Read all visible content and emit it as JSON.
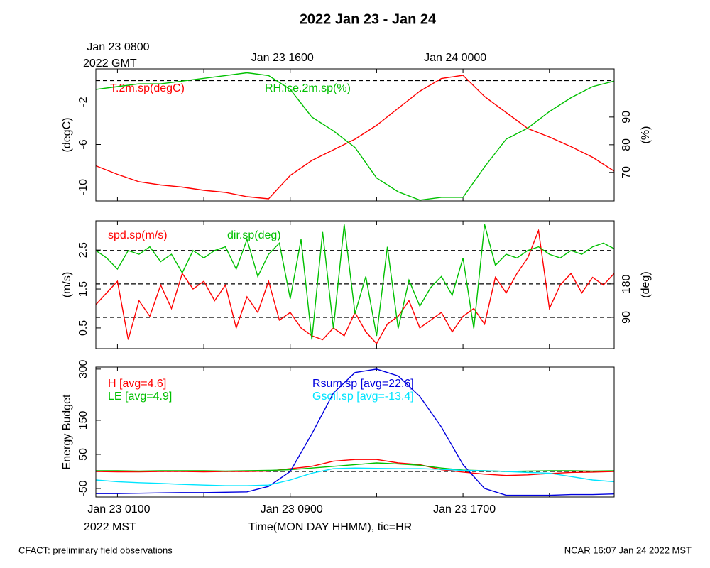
{
  "title": "2022 Jan 23 - Jan 24",
  "x_label": "Time(MON DAY HHMM), tic=HR",
  "bottom_zone_label": "2022 MST",
  "top_zone_label": "2022 GMT",
  "footer_left": "CFACT: preliminary field observations",
  "footer_right": "NCAR 16:07 Jan 24 2022 MST",
  "xlim": [
    -1,
    23
  ],
  "xticks": [
    {
      "value": 0,
      "label": "Jan 23 0100"
    },
    {
      "value": 8,
      "label": "Jan 23 0900"
    },
    {
      "value": 16,
      "label": "Jan 23 1700"
    }
  ],
  "top_xticks": [
    {
      "value": 0,
      "label": "Jan 23 0800"
    },
    {
      "value": 8,
      "label": "Jan 23 1600"
    },
    {
      "value": 16,
      "label": "Jan 24 0000"
    }
  ],
  "minor_xticks": [
    4,
    12,
    20
  ],
  "chart_data": [
    {
      "type": "line",
      "ylabel": "(degC)",
      "y2label": "(%)",
      "x": [
        -1,
        0,
        1,
        2,
        3,
        4,
        5,
        6,
        7,
        8,
        9,
        10,
        11,
        12,
        13,
        14,
        15,
        16,
        17,
        18,
        19,
        20,
        21,
        22,
        23
      ],
      "ylim": [
        -11.3,
        1.1
      ],
      "yticks": [
        -10,
        -6,
        -2
      ],
      "y2lim": [
        59.7,
        107.4
      ],
      "y2ticks": [
        70,
        80,
        90
      ],
      "hlines": [
        0
      ],
      "series": [
        {
          "name": "T.2m.sp(degC)",
          "color": "#ff0000",
          "values": [
            -8,
            -8.8,
            -9.5,
            -9.8,
            -10,
            -10.3,
            -10.5,
            -10.9,
            -11.1,
            -8.9,
            -7.5,
            -6.5,
            -5.5,
            -4.2,
            -2.6,
            -1.0,
            0.2,
            0.5,
            -1.5,
            -3.0,
            -4.5,
            -5.3,
            -6.2,
            -7.2,
            -8.5
          ]
        },
        {
          "name": "RH.ice.2m.sp(%)",
          "color": "#00c000",
          "axis": "y2",
          "values": [
            100,
            101,
            102,
            102,
            103,
            104,
            105,
            106,
            105,
            100,
            90,
            85,
            79,
            68,
            63,
            60,
            61,
            61,
            72,
            82,
            86,
            92,
            97,
            101,
            103
          ]
        }
      ]
    },
    {
      "type": "line",
      "ylabel": "(m/s)",
      "y2label": "(deg)",
      "x": [
        -1,
        -0.5,
        0,
        0.5,
        1,
        1.5,
        2,
        2.5,
        3,
        3.5,
        4,
        4.5,
        5,
        5.5,
        6,
        6.5,
        7,
        7.5,
        8,
        8.5,
        9,
        9.5,
        10,
        10.5,
        11,
        11.5,
        12,
        12.5,
        13,
        13.5,
        14,
        14.5,
        15,
        15.5,
        16,
        16.5,
        17,
        17.5,
        18,
        18.5,
        19,
        19.5,
        20,
        20.5,
        21,
        21.5,
        22,
        22.5,
        23
      ],
      "ylim": [
        -0.03,
        3.25
      ],
      "yticks": [
        0.5,
        1.5,
        2.5
      ],
      "y2lim": [
        5.7,
        350
      ],
      "y2ticks": [
        90,
        180
      ],
      "y2hlines": [
        90,
        180,
        270
      ],
      "series": [
        {
          "name": "spd.sp(m/s)",
          "color": "#ff0000",
          "values": [
            1.1,
            1.4,
            1.7,
            0.2,
            1.2,
            0.8,
            1.6,
            1.0,
            1.9,
            1.5,
            1.7,
            1.2,
            1.6,
            0.5,
            1.3,
            0.9,
            1.7,
            0.7,
            0.9,
            0.5,
            0.3,
            0.2,
            0.5,
            0.3,
            0.9,
            0.4,
            0.1,
            0.6,
            0.8,
            1.2,
            0.5,
            0.7,
            0.9,
            0.4,
            0.8,
            1.0,
            0.6,
            1.8,
            1.4,
            1.9,
            2.3,
            3.0,
            1.0,
            1.6,
            1.9,
            1.4,
            1.8,
            1.6,
            1.9
          ]
        },
        {
          "name": "dir.sp(deg)",
          "color": "#00c000",
          "axis": "y2",
          "values": [
            270,
            250,
            220,
            270,
            260,
            280,
            240,
            260,
            210,
            270,
            250,
            270,
            280,
            220,
            300,
            200,
            260,
            290,
            140,
            300,
            30,
            320,
            60,
            340,
            100,
            200,
            40,
            280,
            60,
            190,
            120,
            170,
            200,
            150,
            250,
            60,
            340,
            230,
            260,
            250,
            270,
            280,
            260,
            250,
            270,
            260,
            280,
            290,
            275
          ]
        }
      ]
    },
    {
      "type": "line",
      "ylabel": "Energy Budget",
      "x": [
        -1,
        0,
        1,
        2,
        3,
        4,
        5,
        6,
        7,
        8,
        9,
        10,
        11,
        12,
        13,
        14,
        15,
        16,
        17,
        18,
        19,
        20,
        21,
        22,
        23
      ],
      "ylim": [
        -75,
        306
      ],
      "yticks": [
        -50,
        50,
        150,
        300
      ],
      "hlines": [
        0
      ],
      "series": [
        {
          "name": "H [avg=4.6]",
          "color": "#ff0000",
          "values": [
            0,
            -1,
            -1,
            0,
            0,
            -1,
            0,
            0,
            1,
            8,
            15,
            30,
            35,
            35,
            25,
            20,
            5,
            -2,
            -8,
            -12,
            -10,
            -6,
            -3,
            -2,
            0
          ]
        },
        {
          "name": "LE [avg=4.9]",
          "color": "#00c000",
          "values": [
            2,
            2,
            1,
            2,
            2,
            2,
            1,
            2,
            3,
            5,
            10,
            15,
            20,
            25,
            22,
            18,
            10,
            4,
            2,
            0,
            1,
            2,
            2,
            1,
            2
          ]
        },
        {
          "name": "Rsum.sp [avg=22.6]",
          "color": "#0000dd",
          "values": [
            -65,
            -65,
            -64,
            -63,
            -62,
            -62,
            -61,
            -60,
            -44,
            0,
            110,
            230,
            290,
            300,
            280,
            220,
            130,
            20,
            -50,
            -70,
            -70,
            -70,
            -68,
            -68,
            -66
          ]
        },
        {
          "name": "Gsoil.sp [avg=-13.4]",
          "color": "#00e5ff",
          "values": [
            -25,
            -30,
            -33,
            -35,
            -38,
            -40,
            -42,
            -42,
            -40,
            -25,
            -5,
            8,
            10,
            9,
            8,
            8,
            6,
            3,
            2,
            0,
            -3,
            -5,
            -15,
            -25,
            -30
          ]
        }
      ]
    }
  ]
}
